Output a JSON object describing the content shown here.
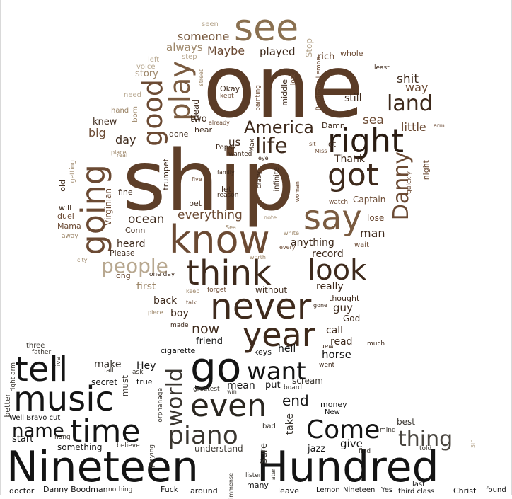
{
  "title": "",
  "palette": {
    "black": "#141414",
    "dark_brown": "#3e2a1c",
    "brown": "#6b4a33",
    "mid_brown": "#7a5b40",
    "tan": "#9b8466",
    "light_tan": "#b8a890",
    "pale": "#cfc6b6"
  },
  "words": [
    "one",
    "ship",
    "see",
    "right",
    "got",
    "know",
    "say",
    "going",
    "good",
    "play",
    "land",
    "America",
    "life",
    "think",
    "never",
    "year",
    "look",
    "Danny",
    "people",
    "go",
    "want",
    "tell",
    "music",
    "even",
    "world",
    "time",
    "piano",
    "Come",
    "name",
    "thing",
    "Nineteen",
    "Hundred",
    "ocean",
    "everything",
    "shit",
    "way",
    "still",
    "sea",
    "little",
    "someone",
    "always",
    "Maybe",
    "played",
    "rich",
    "whole",
    "Stop",
    "seen",
    "step",
    "left",
    "voice",
    "story",
    "need",
    "hand",
    "born",
    "knew",
    "big",
    "day",
    "us",
    "Okay",
    "kept",
    "two",
    "head",
    "hear",
    "done",
    "Popsx",
    "Thank",
    "Captain",
    "lose",
    "man",
    "night",
    "quickly",
    "arm",
    "least",
    "trumpet",
    "bet",
    "let",
    "five",
    "fine",
    "old",
    "will",
    "duel",
    "Mama",
    "Virginian",
    "Conn",
    "heard",
    "Please",
    "long",
    "away",
    "city",
    "first",
    "back",
    "boy",
    "now",
    "friend",
    "made",
    "talk",
    "forget",
    "keep",
    "without",
    "really",
    "thought",
    "guy",
    "God",
    "record",
    "anything",
    "call",
    "read",
    "wait",
    "much",
    "horse",
    "went",
    "war",
    "hell",
    "keys",
    "cigarette",
    "three",
    "father",
    "live",
    "make",
    "Hey",
    "ask",
    "fall",
    "must",
    "true",
    "secret",
    "better",
    "right arm",
    "Well Bravo cut",
    "start",
    "something",
    "believe",
    "hang",
    "playing",
    "orphanage",
    "greatest",
    "win",
    "mean",
    "put",
    "board",
    "scream",
    "end",
    "money",
    "New",
    "take",
    "bad",
    "understand",
    "Sure",
    "jazz",
    "give",
    "find",
    "best",
    "mind",
    "told",
    "sir",
    "doctor",
    "Danny Boodman",
    "nothing",
    "Fuck",
    "around",
    "immense",
    "many",
    "listen",
    "later",
    "leave",
    "Lemon",
    "Nineteen",
    "Yes",
    "third class",
    "last",
    "Christ",
    "found",
    "painting",
    "middle",
    "lost",
    "Boodman Lemon",
    "Damn",
    "lot",
    "sit",
    "Miss",
    "street",
    "already",
    "wanted",
    "eye",
    "real",
    "place",
    "getting",
    "family",
    "reason",
    "crazy",
    "infinite",
    "woman",
    "watch",
    "note",
    "white",
    "every",
    "worth",
    "piece",
    "gone",
    "one day",
    "Max",
    "Sea"
  ]
}
